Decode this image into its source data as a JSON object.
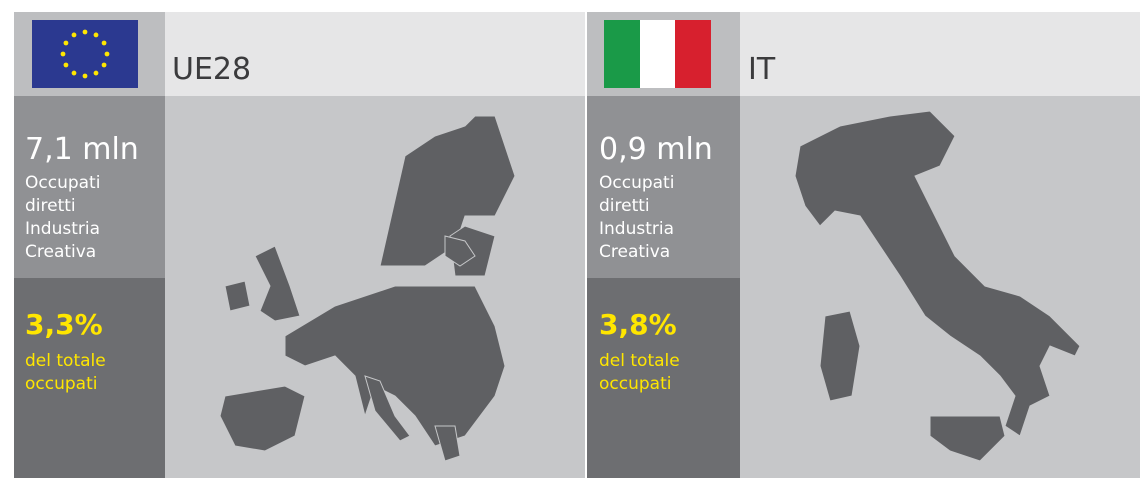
{
  "panels": [
    {
      "region": "UE28",
      "value": "7,1 mln",
      "description": [
        "Occupati",
        "diretti",
        "Industria",
        "Creativa"
      ],
      "percent": "3,3%",
      "percent_label": [
        "del totale",
        "occupati"
      ]
    },
    {
      "region": "IT",
      "value": "0,9 mln",
      "description": [
        "Occupati",
        "diretti",
        "Industria",
        "Creativa"
      ],
      "percent": "3,8%",
      "percent_label": [
        "del totale",
        "occupati"
      ]
    }
  ]
}
